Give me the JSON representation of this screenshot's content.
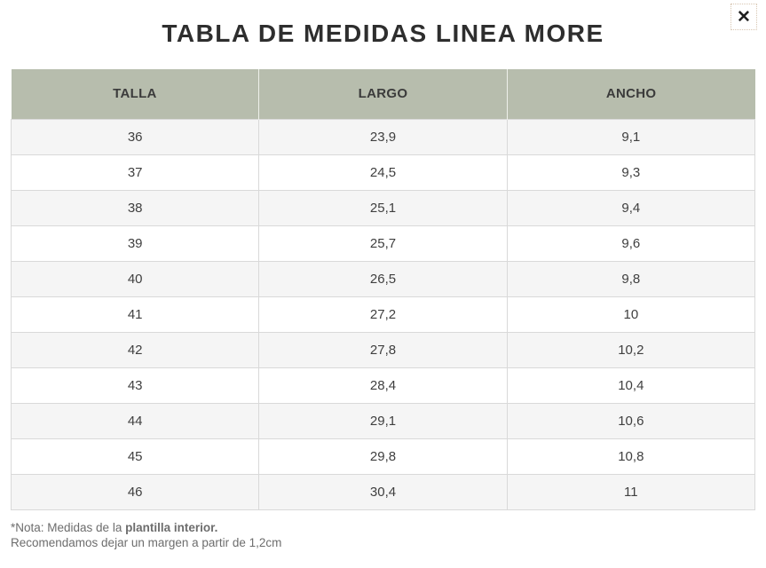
{
  "modal": {
    "title": "TABLA DE MEDIDAS LINEA MORE",
    "close_icon": "✕"
  },
  "table": {
    "headers": [
      "TALLA",
      "LARGO",
      "ANCHO"
    ],
    "rows": [
      [
        "36",
        "23,9",
        "9,1"
      ],
      [
        "37",
        "24,5",
        "9,3"
      ],
      [
        "38",
        "25,1",
        "9,4"
      ],
      [
        "39",
        "25,7",
        "9,6"
      ],
      [
        "40",
        "26,5",
        "9,8"
      ],
      [
        "41",
        "27,2",
        "10"
      ],
      [
        "42",
        "27,8",
        "10,2"
      ],
      [
        "43",
        "28,4",
        "10,4"
      ],
      [
        "44",
        "29,1",
        "10,6"
      ],
      [
        "45",
        "29,8",
        "10,8"
      ],
      [
        "46",
        "30,4",
        "11"
      ]
    ]
  },
  "note": {
    "line1_prefix": "*Nota: Medidas de la",
    "line1_bold": "plantilla interior.",
    "line2": "Recomendamos dejar un margen a partir de 1,2cm"
  },
  "colors": {
    "header-bg": "#b7bdad",
    "row-alt": "#f5f5f5",
    "border": "#d9d9d9",
    "title-text": "#2e2e2e",
    "header-text": "#3b3b3b",
    "cell-text": "#3f3f3f",
    "note-text": "#6d6d6d"
  }
}
